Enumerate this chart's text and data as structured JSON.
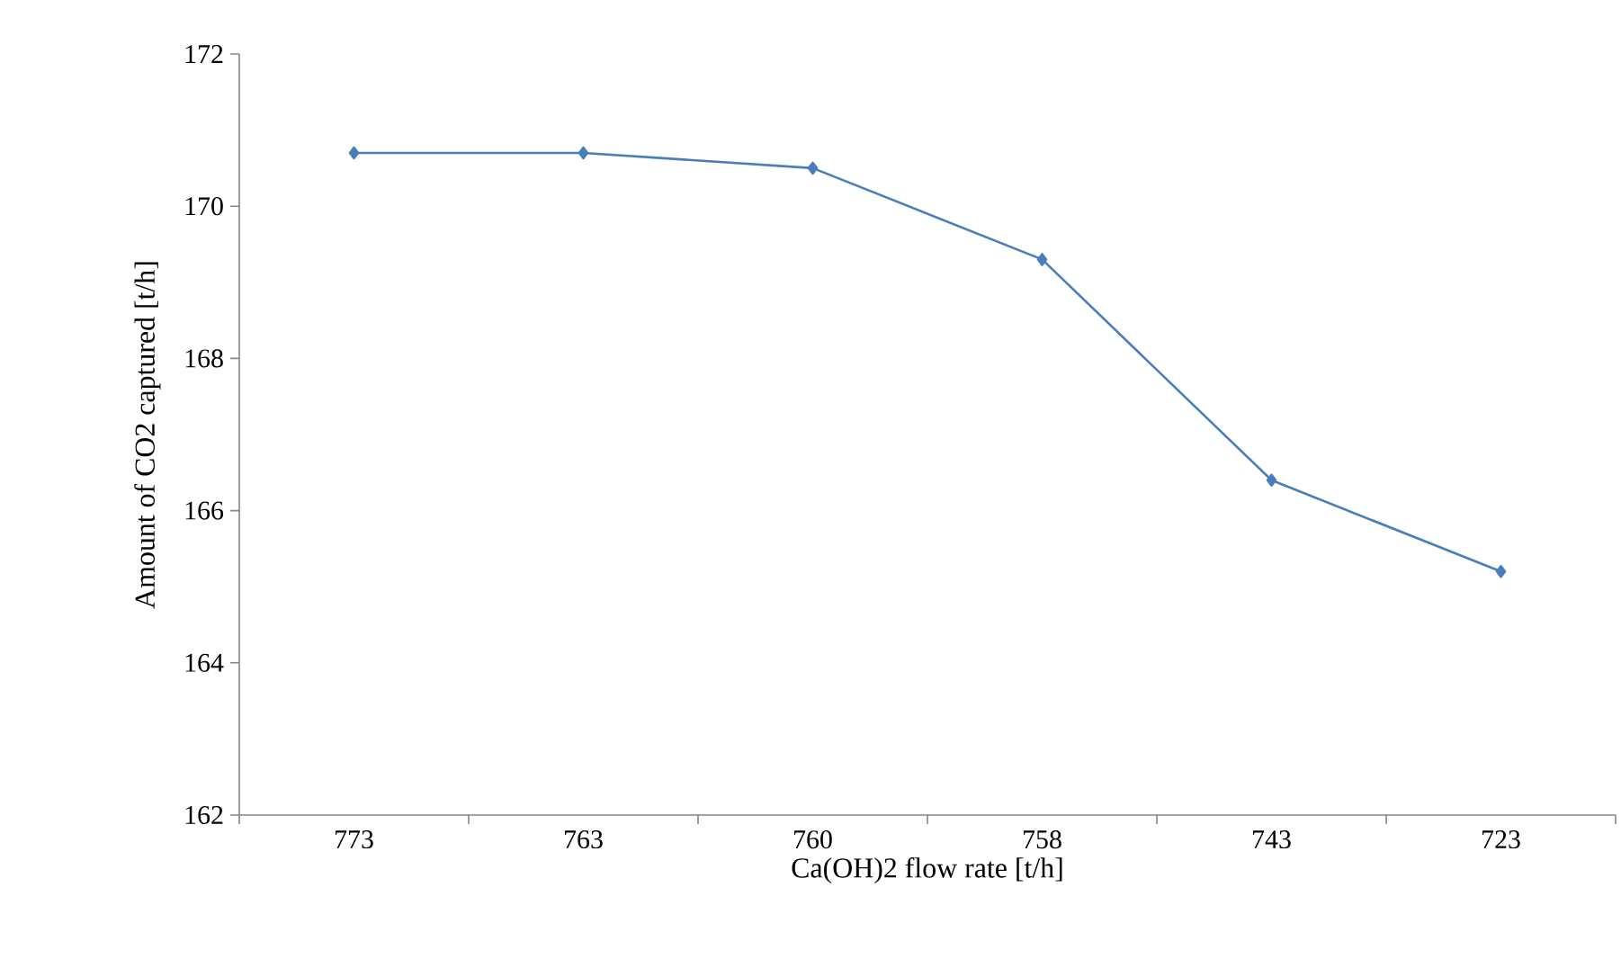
{
  "chart_data": {
    "type": "line",
    "xlabel": "Ca(OH)2 flow rate [t/h]",
    "ylabel": "Amount of CO2 captured [t/h]",
    "categories": [
      "773",
      "763",
      "760",
      "758",
      "743",
      "723"
    ],
    "series": [
      {
        "color": "#4a7ebb",
        "values": [
          170.7,
          170.7,
          170.5,
          169.3,
          166.4,
          165.2
        ]
      }
    ],
    "ylim": [
      162,
      172
    ],
    "yticks": [
      162,
      164,
      166,
      168,
      170,
      172
    ],
    "grid": false,
    "marker": "diamond",
    "line_style": "solid"
  }
}
